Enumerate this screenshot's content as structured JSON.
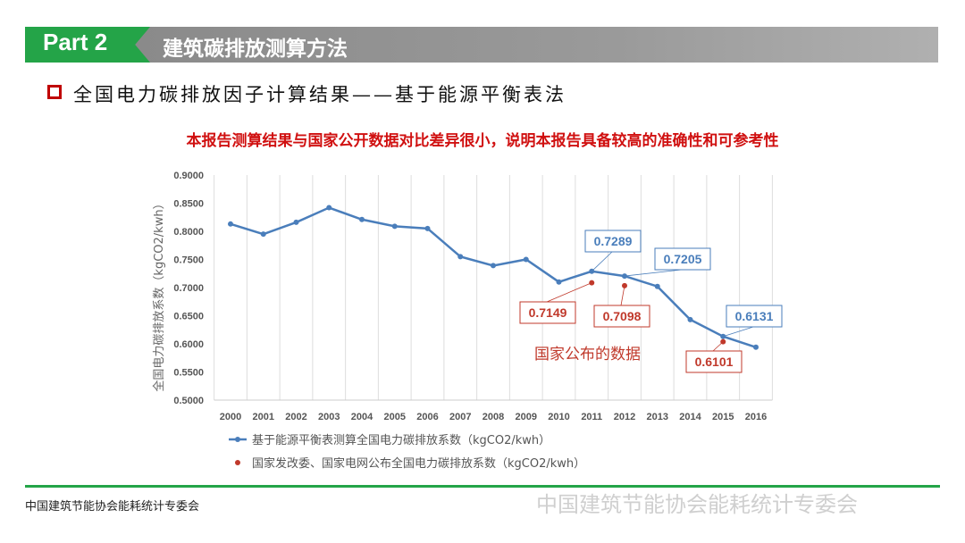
{
  "header": {
    "part": "Part 2",
    "title": "建筑碳排放测算方法"
  },
  "subtitle": "全国电力碳排放因子计算结果——基于能源平衡表法",
  "highlight": "本报告测算结果与国家公开数据对比差异很小，说明本报告具备较高的准确性和可参考性",
  "footer": "中国建筑节能协会能耗统计专委会",
  "watermark": "中国建筑节能协会能耗统计专委会",
  "colors": {
    "green": "#24a448",
    "series": "#4a7ebb",
    "official": "#c0392b",
    "accent": "#c00000"
  },
  "chart_data": {
    "type": "line",
    "ylabel": "全国电力碳排放系数（kgCO2/kwh）",
    "ylim": [
      0.5,
      0.9
    ],
    "yticks": [
      "0.9000",
      "0.8500",
      "0.8000",
      "0.7500",
      "0.7000",
      "0.6500",
      "0.6000",
      "0.5500",
      "0.5000"
    ],
    "grid": "vertical",
    "legend": "bottom",
    "categories": [
      "2000",
      "2001",
      "2002",
      "2003",
      "2004",
      "2005",
      "2006",
      "2007",
      "2008",
      "2009",
      "2010",
      "2011",
      "2012",
      "2013",
      "2014",
      "2015",
      "2016"
    ],
    "series": [
      {
        "name": "基于能源平衡表测算全国电力碳排放系数（kgCO2/kwh）",
        "type": "line",
        "values": [
          0.813,
          0.795,
          0.816,
          0.842,
          0.821,
          0.809,
          0.805,
          0.755,
          0.739,
          0.75,
          0.71,
          0.7289,
          0.7205,
          0.702,
          0.643,
          0.6131,
          0.594
        ]
      },
      {
        "name": "国家发改委、国家电网公布全国电力碳排放系数（kgCO2/kwh）",
        "type": "scatter",
        "points": [
          {
            "x": "2011",
            "y": 0.7149
          },
          {
            "x": "2012",
            "y": 0.7098
          },
          {
            "x": "2015",
            "y": 0.6101
          }
        ]
      }
    ],
    "callouts": [
      {
        "x": "2011",
        "label": "0.7289",
        "series": 0
      },
      {
        "x": "2012",
        "label": "0.7205",
        "series": 0
      },
      {
        "x": "2015",
        "label": "0.6131",
        "series": 0
      },
      {
        "x": "2011",
        "label": "0.7149",
        "series": 1
      },
      {
        "x": "2012",
        "label": "0.7098",
        "series": 1
      },
      {
        "x": "2015",
        "label": "0.6101",
        "series": 1
      }
    ],
    "annotation": "国家公布的数据"
  }
}
